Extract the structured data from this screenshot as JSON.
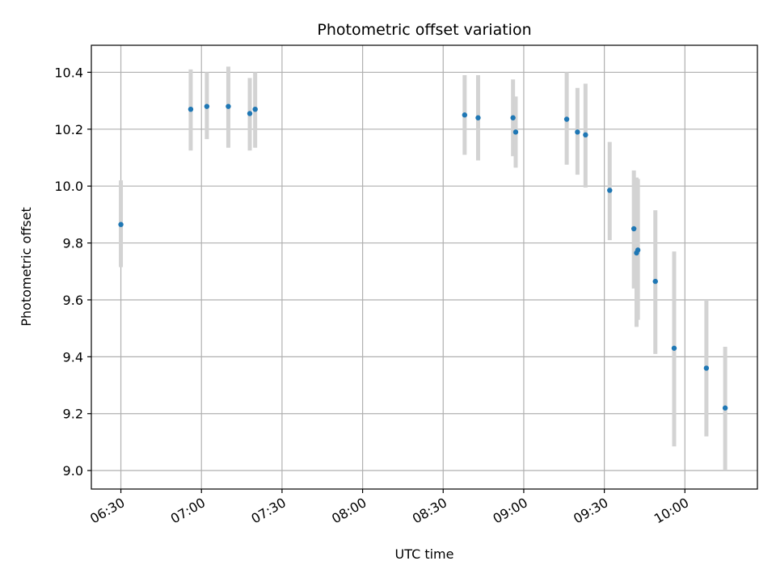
{
  "chart_data": {
    "type": "scatter",
    "title": "Photometric offset variation",
    "xlabel": "UTC time",
    "ylabel": "Photometric offset",
    "xlim": [
      "06:19",
      "10:27"
    ],
    "ylim": [
      8.935,
      10.495
    ],
    "x_ticks": [
      "06:30",
      "07:00",
      "07:30",
      "08:00",
      "08:30",
      "09:00",
      "09:30",
      "10:00"
    ],
    "y_ticks": [
      9.0,
      9.2,
      9.4,
      9.6,
      9.8,
      10.0,
      10.2,
      10.4
    ],
    "grid": true,
    "colors": {
      "point": "#1f77b4",
      "errorbar": "#d3d3d3",
      "grid": "#b0b0b0"
    },
    "points": [
      {
        "x": "06:30",
        "y": 9.865,
        "yerr_low": 9.715,
        "yerr_high": 10.02
      },
      {
        "x": "06:56",
        "y": 10.27,
        "yerr_low": 10.125,
        "yerr_high": 10.41
      },
      {
        "x": "07:02",
        "y": 10.28,
        "yerr_low": 10.165,
        "yerr_high": 10.4
      },
      {
        "x": "07:10",
        "y": 10.28,
        "yerr_low": 10.135,
        "yerr_high": 10.42
      },
      {
        "x": "07:18",
        "y": 10.255,
        "yerr_low": 10.125,
        "yerr_high": 10.38
      },
      {
        "x": "07:20",
        "y": 10.27,
        "yerr_low": 10.135,
        "yerr_high": 10.4
      },
      {
        "x": "08:38",
        "y": 10.25,
        "yerr_low": 10.11,
        "yerr_high": 10.39
      },
      {
        "x": "08:43",
        "y": 10.24,
        "yerr_low": 10.09,
        "yerr_high": 10.39
      },
      {
        "x": "08:56",
        "y": 10.24,
        "yerr_low": 10.105,
        "yerr_high": 10.375
      },
      {
        "x": "08:57",
        "y": 10.19,
        "yerr_low": 10.065,
        "yerr_high": 10.315
      },
      {
        "x": "09:16",
        "y": 10.235,
        "yerr_low": 10.075,
        "yerr_high": 10.4
      },
      {
        "x": "09:20",
        "y": 10.19,
        "yerr_low": 10.04,
        "yerr_high": 10.345
      },
      {
        "x": "09:23",
        "y": 10.18,
        "yerr_low": 9.995,
        "yerr_high": 10.36
      },
      {
        "x": "09:32",
        "y": 9.985,
        "yerr_low": 9.81,
        "yerr_high": 10.155
      },
      {
        "x": "09:41",
        "y": 9.85,
        "yerr_low": 9.64,
        "yerr_high": 10.055
      },
      {
        "x": "09:42",
        "y": 9.765,
        "yerr_low": 9.505,
        "yerr_high": 10.03
      },
      {
        "x": "09:42.5",
        "y": 9.775,
        "yerr_low": 9.53,
        "yerr_high": 10.025
      },
      {
        "x": "09:49",
        "y": 9.665,
        "yerr_low": 9.41,
        "yerr_high": 9.915
      },
      {
        "x": "09:56",
        "y": 9.43,
        "yerr_low": 9.085,
        "yerr_high": 9.77
      },
      {
        "x": "10:08",
        "y": 9.36,
        "yerr_low": 9.12,
        "yerr_high": 9.6
      },
      {
        "x": "10:15",
        "y": 9.22,
        "yerr_low": 9.0,
        "yerr_high": 9.435
      }
    ]
  }
}
